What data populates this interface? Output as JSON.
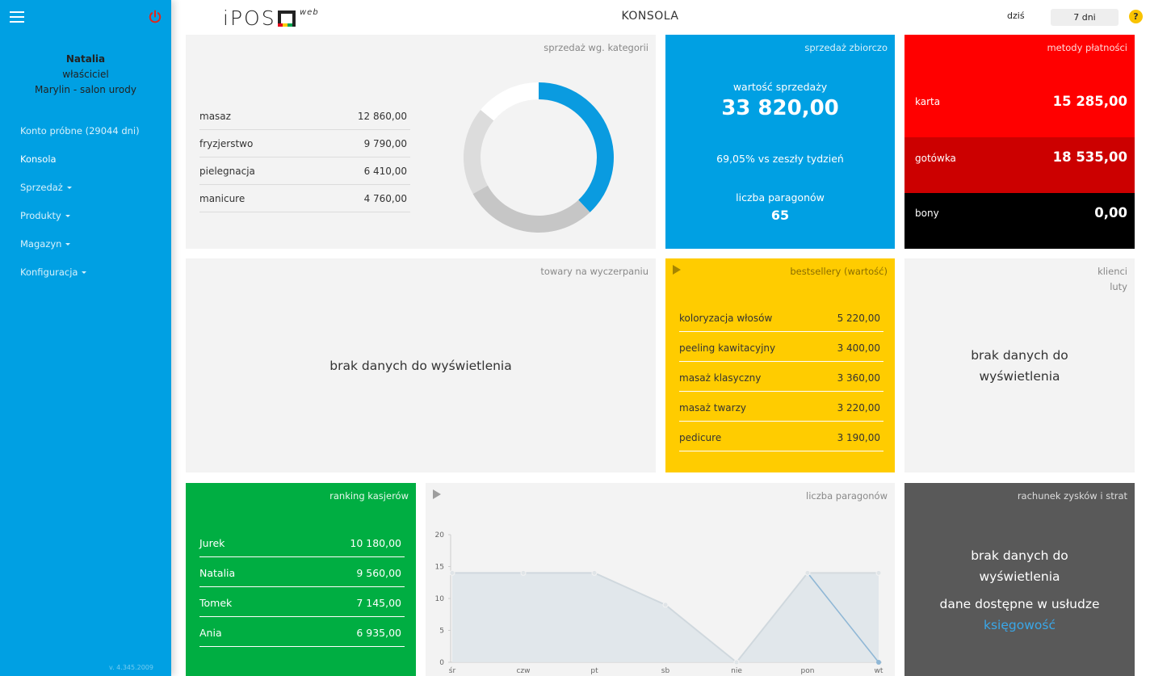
{
  "sidebar": {
    "user_name": "Natalia",
    "user_role": "właściciel",
    "salon": "Marylin - salon urody",
    "items": [
      {
        "label": "Konto próbne (29044 dni)",
        "has_caret": false,
        "active": false
      },
      {
        "label": "Konsola",
        "has_caret": false,
        "active": true
      },
      {
        "label": "Sprzedaż",
        "has_caret": true,
        "active": false
      },
      {
        "label": "Produkty",
        "has_caret": true,
        "active": false
      },
      {
        "label": "Magazyn",
        "has_caret": true,
        "active": false
      },
      {
        "label": "Konfiguracja",
        "has_caret": true,
        "active": false
      }
    ],
    "version": "v. 4.345.2009",
    "icons": {
      "menu": "hamburger-icon",
      "logout": "power-icon"
    }
  },
  "header": {
    "logo_text": "iPOS",
    "logo_suffix": "web",
    "title": "KONSOLA",
    "period_today": "dziś",
    "period_selected": "7 dni",
    "help": "?"
  },
  "colors": {
    "accent_blue": "#00a0e3",
    "red": "#ff0000",
    "dark_red": "#cc0000",
    "black": "#000000",
    "yellow": "#ffcc00",
    "green": "#00ae42",
    "dark_gray": "#595959",
    "donut": [
      "#0a9be0",
      "#c6c6c6",
      "#dcdcdc",
      "#ffffff"
    ]
  },
  "tiles": {
    "categories": {
      "title": "sprzedaż wg. kategorii",
      "rows": [
        {
          "name": "masaz",
          "value": "12 860,00"
        },
        {
          "name": "fryzjerstwo",
          "value": "9 790,00"
        },
        {
          "name": "pielegnacja",
          "value": "6 410,00"
        },
        {
          "name": "manicure",
          "value": "4 760,00"
        }
      ],
      "donut_values": [
        12860,
        9790,
        6410,
        4760
      ]
    },
    "summary": {
      "title": "sprzedaż zbiorczo",
      "sales_label": "wartość sprzedaży",
      "sales_value": "33 820,00",
      "comparison": "69,05% vs zeszły tydzień",
      "receipts_label": "liczba paragonów",
      "receipts_value": "65"
    },
    "payments": {
      "title": "metody płatności",
      "rows": [
        {
          "label": "karta",
          "value": "15 285,00",
          "color": "#ff0000"
        },
        {
          "label": "gotówka",
          "value": "18 535,00",
          "color": "#cc0000"
        },
        {
          "label": "bony",
          "value": "0,00",
          "color": "#000000"
        }
      ]
    },
    "low_stock": {
      "title": "towary na wyczerpaniu",
      "empty": "brak danych do wyświetlenia"
    },
    "bestsellers": {
      "title": "bestsellery (wartość)",
      "rows": [
        {
          "name": "koloryzacja włosów",
          "value": "5 220,00"
        },
        {
          "name": "peeling kawitacyjny",
          "value": "3 400,00"
        },
        {
          "name": "masaż klasyczny",
          "value": "3 360,00"
        },
        {
          "name": "masaż twarzy",
          "value": "3 220,00"
        },
        {
          "name": "pedicure",
          "value": "3 190,00"
        }
      ]
    },
    "clients": {
      "title_line1": "klienci",
      "title_line2": "luty",
      "empty_line1": "brak danych do",
      "empty_line2": "wyświetlenia"
    },
    "ranking": {
      "title": "ranking kasjerów",
      "rows": [
        {
          "name": "Jurek",
          "value": "10 180,00"
        },
        {
          "name": "Natalia",
          "value": "9 560,00"
        },
        {
          "name": "Tomek",
          "value": "7 145,00"
        },
        {
          "name": "Ania",
          "value": "6 935,00"
        }
      ]
    },
    "receipts_chart": {
      "title": "liczba paragonów"
    },
    "pnl": {
      "title": "rachunek zysków i strat",
      "empty_line1": "brak danych do",
      "empty_line2": "wyświetlenia",
      "note": "dane dostępne w usłudze",
      "link": "księgowość"
    }
  },
  "chart_data": {
    "type": "area",
    "title": "liczba paragonów",
    "categories": [
      "śr",
      "czw",
      "pt",
      "sb",
      "nie",
      "pon",
      "wt"
    ],
    "series": [
      {
        "values": [
          14,
          14,
          14,
          9,
          0,
          14,
          0
        ]
      }
    ],
    "secondary_line": [
      14,
      14,
      14,
      9,
      0,
      14,
      14
    ],
    "yticks": [
      0,
      5,
      10,
      15,
      20
    ],
    "ylim": [
      0,
      20
    ],
    "grid": false
  }
}
